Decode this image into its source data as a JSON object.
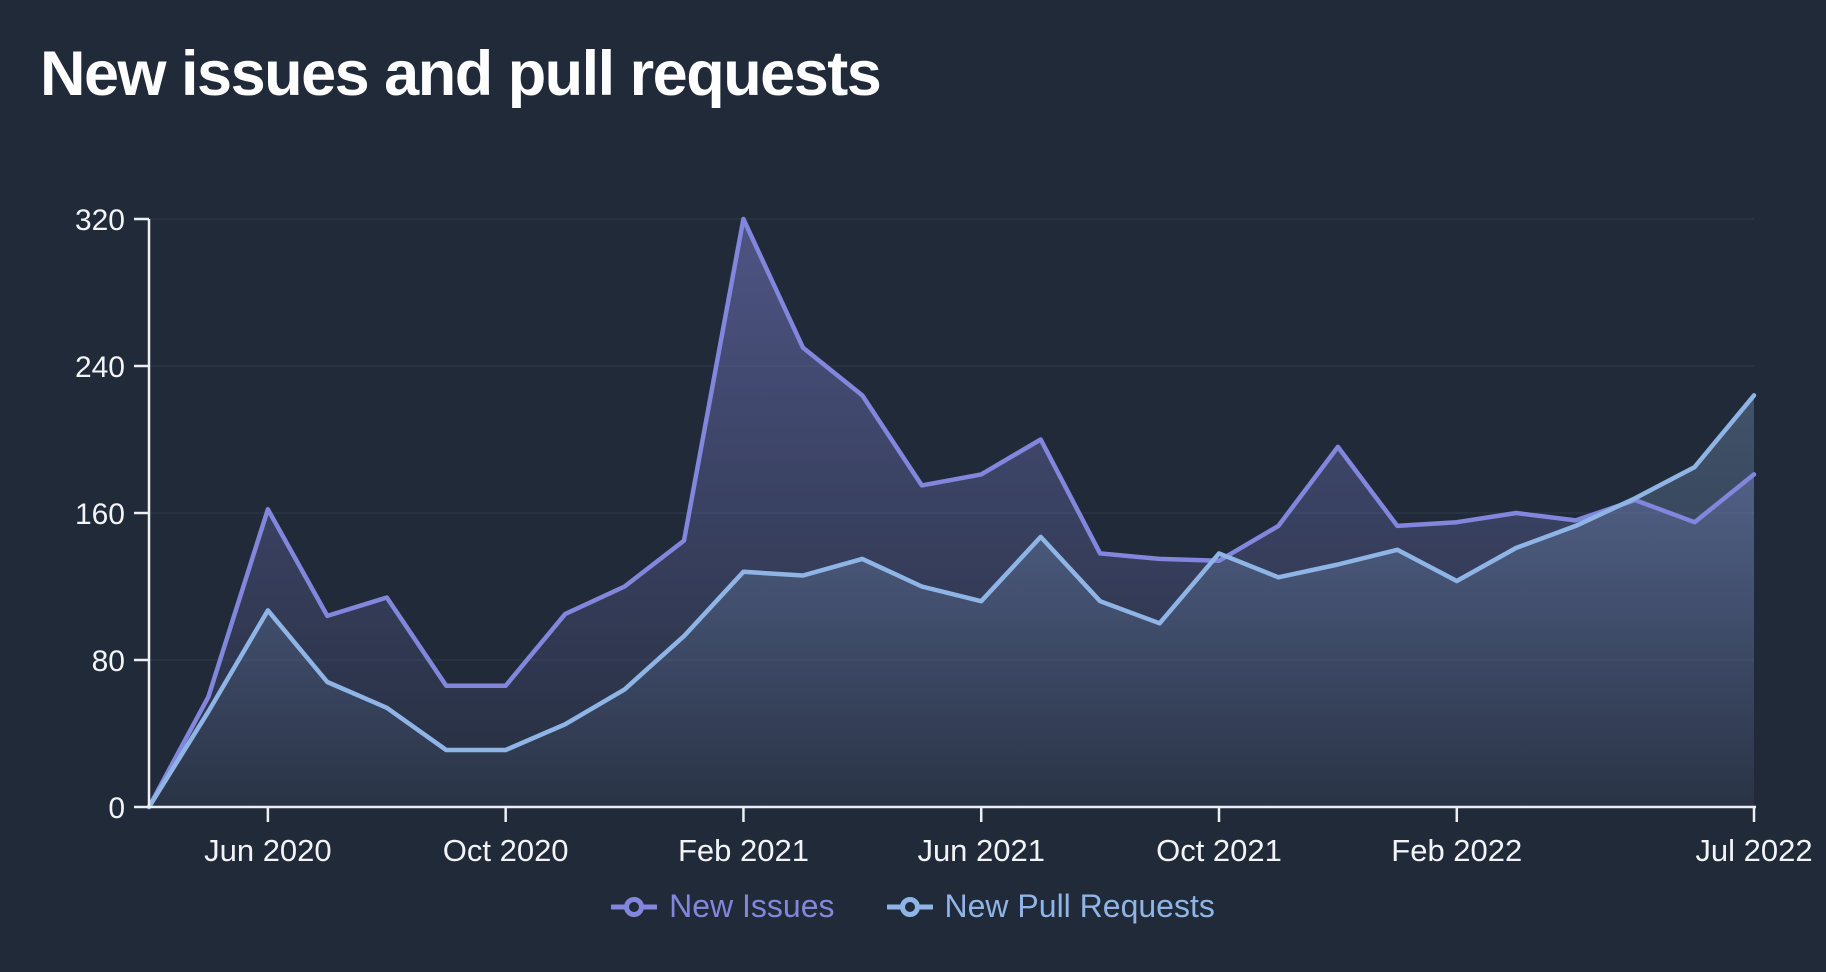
{
  "chart_data": {
    "type": "area",
    "title": "New issues and pull requests",
    "x": [
      "Apr 2020",
      "May 2020",
      "Jun 2020",
      "Jul 2020",
      "Aug 2020",
      "Sep 2020",
      "Oct 2020",
      "Nov 2020",
      "Dec 2020",
      "Jan 2021",
      "Feb 2021",
      "Mar 2021",
      "Apr 2021",
      "May 2021",
      "Jun 2021",
      "Jul 2021",
      "Aug 2021",
      "Sep 2021",
      "Oct 2021",
      "Nov 2021",
      "Dec 2021",
      "Jan 2022",
      "Feb 2022",
      "Mar 2022",
      "Apr 2022",
      "May 2022",
      "Jun 2022",
      "Jul 2022"
    ],
    "series": [
      {
        "name": "New Issues",
        "color": "#8286DC",
        "values": [
          0,
          60,
          162,
          104,
          114,
          66,
          66,
          105,
          120,
          145,
          320,
          250,
          224,
          175,
          181,
          200,
          138,
          135,
          134,
          153,
          196,
          153,
          155,
          160,
          156,
          167,
          155,
          181
        ]
      },
      {
        "name": "New Pull Requests",
        "color": "#8EB5E5",
        "values": [
          0,
          52,
          107,
          68,
          54,
          31,
          31,
          45,
          64,
          93,
          128,
          126,
          135,
          120,
          112,
          147,
          112,
          100,
          138,
          125,
          132,
          140,
          123,
          141,
          153,
          168,
          185,
          224
        ]
      }
    ],
    "ylim": [
      0,
      320
    ],
    "y_ticks": [
      0,
      80,
      160,
      240,
      320
    ],
    "x_ticks": [
      {
        "index": 2,
        "label": "Jun 2020"
      },
      {
        "index": 6,
        "label": "Oct 2020"
      },
      {
        "index": 10,
        "label": "Feb 2021"
      },
      {
        "index": 14,
        "label": "Jun 2021"
      },
      {
        "index": 18,
        "label": "Oct 2021"
      },
      {
        "index": 22,
        "label": "Feb 2022"
      },
      {
        "index": 27,
        "label": "Jul 2022"
      }
    ],
    "legend_position": "bottom",
    "grid": "horizontal-only",
    "background": "#212A38",
    "axis_color": "#EDEFF4",
    "grid_color": "#2A3445",
    "tick_label_color": "#F2F4F8",
    "title_color": "#FFFFFF"
  }
}
